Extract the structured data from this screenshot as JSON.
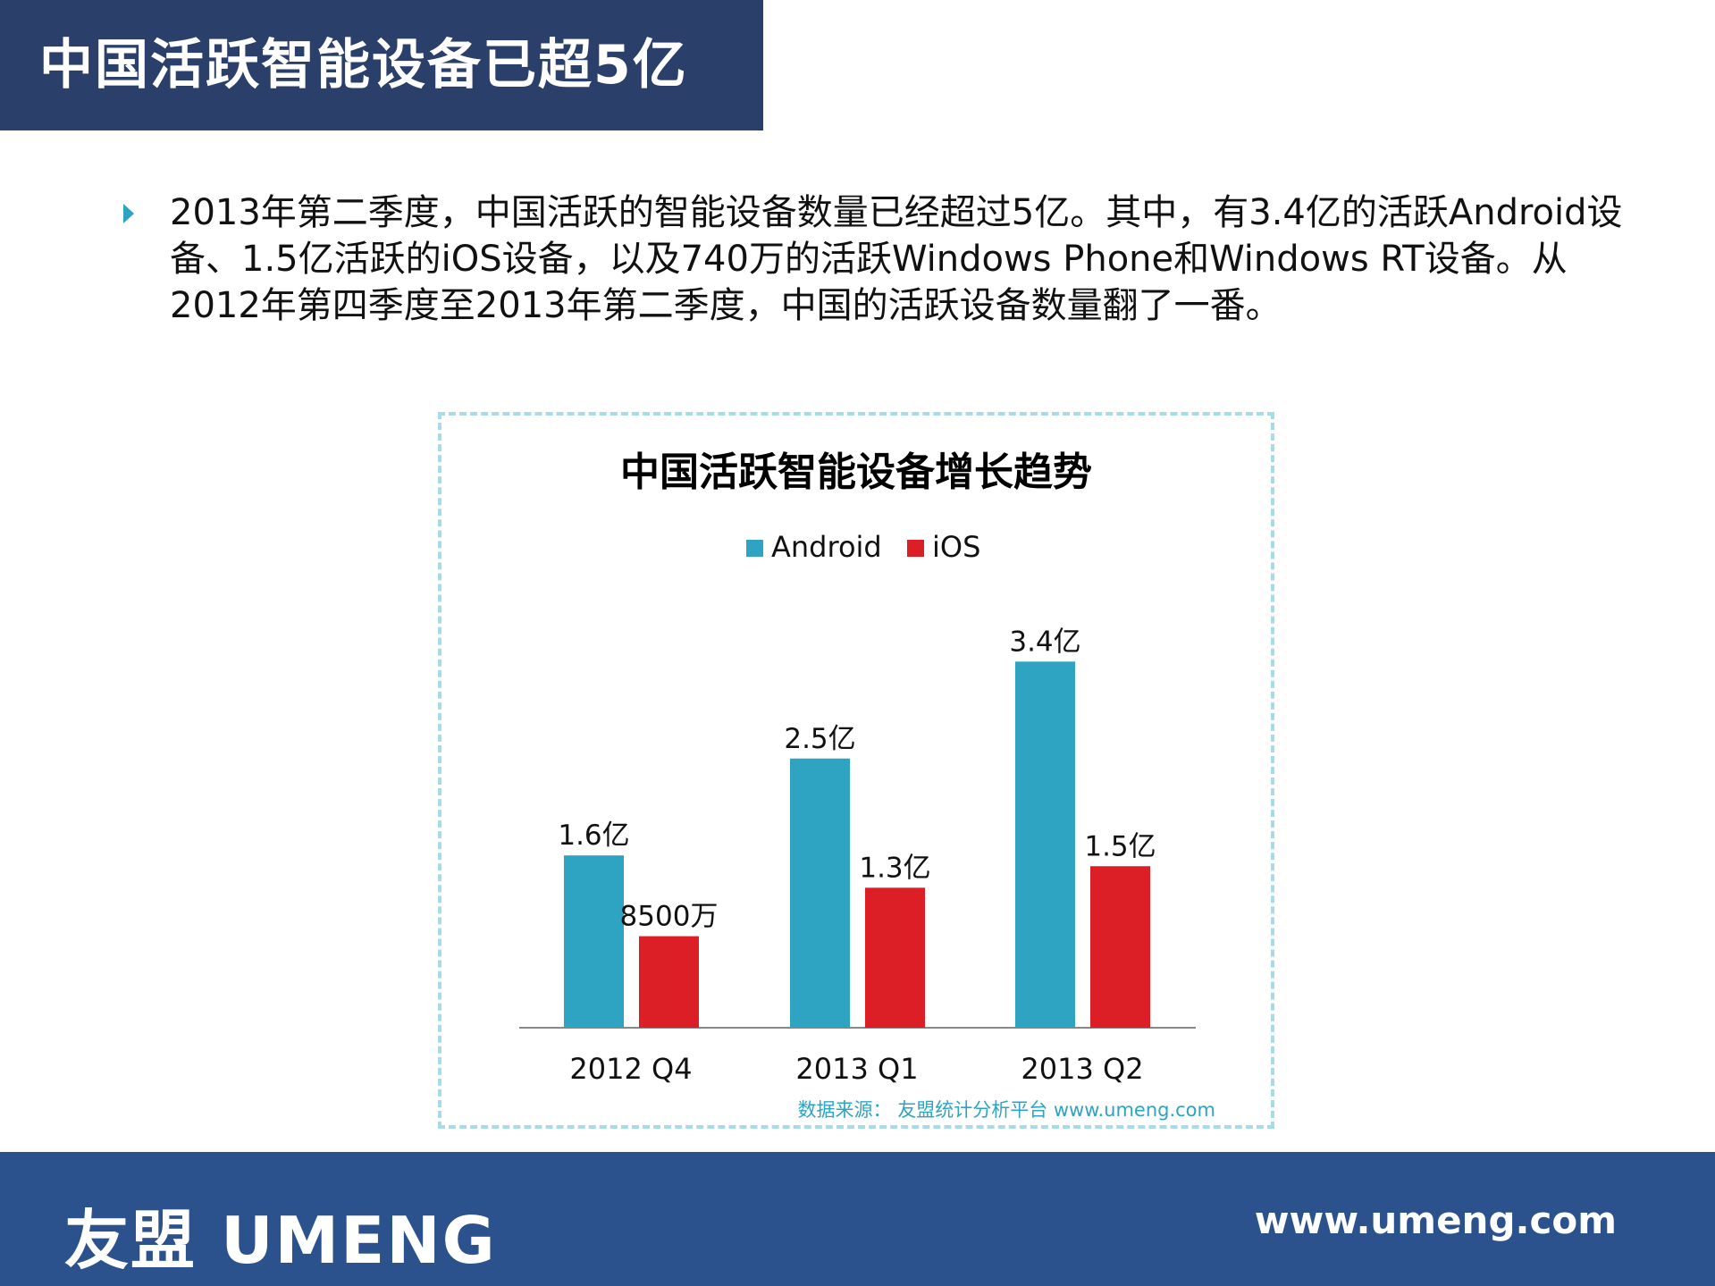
{
  "header": {
    "title": "中国活跃智能设备已超5亿"
  },
  "body": {
    "paragraph": "2013年第二季度，中国活跃的智能设备数量已经超过5亿。其中，有3.4亿的活跃Android设备、1.5亿活跃的iOS设备，以及740万的活跃Windows Phone和Windows RT设备。从2012年第四季度至2013年第二季度，中国的活跃设备数量翻了一番。"
  },
  "chart_data": {
    "type": "bar",
    "title": "中国活跃智能设备增长趋势",
    "categories": [
      "2012 Q4",
      "2013 Q1",
      "2013 Q2"
    ],
    "series": [
      {
        "name": "Android",
        "values": [
          1.6,
          2.5,
          3.4
        ],
        "labels": [
          "1.6亿",
          "2.5亿",
          "3.4亿"
        ],
        "color": "#2ea4c2"
      },
      {
        "name": "iOS",
        "values": [
          0.85,
          1.3,
          1.5
        ],
        "labels": [
          "8500万",
          "1.3亿",
          "1.5亿"
        ],
        "color": "#dc1f26"
      }
    ],
    "unit": "亿",
    "legend": "top-center",
    "grid": false,
    "ylim": [
      0,
      3.4
    ],
    "source": "数据来源： 友盟统计分析平台 www.umeng.com"
  },
  "footer": {
    "logo": "友盟 UMENG",
    "url": "www.umeng.com"
  }
}
